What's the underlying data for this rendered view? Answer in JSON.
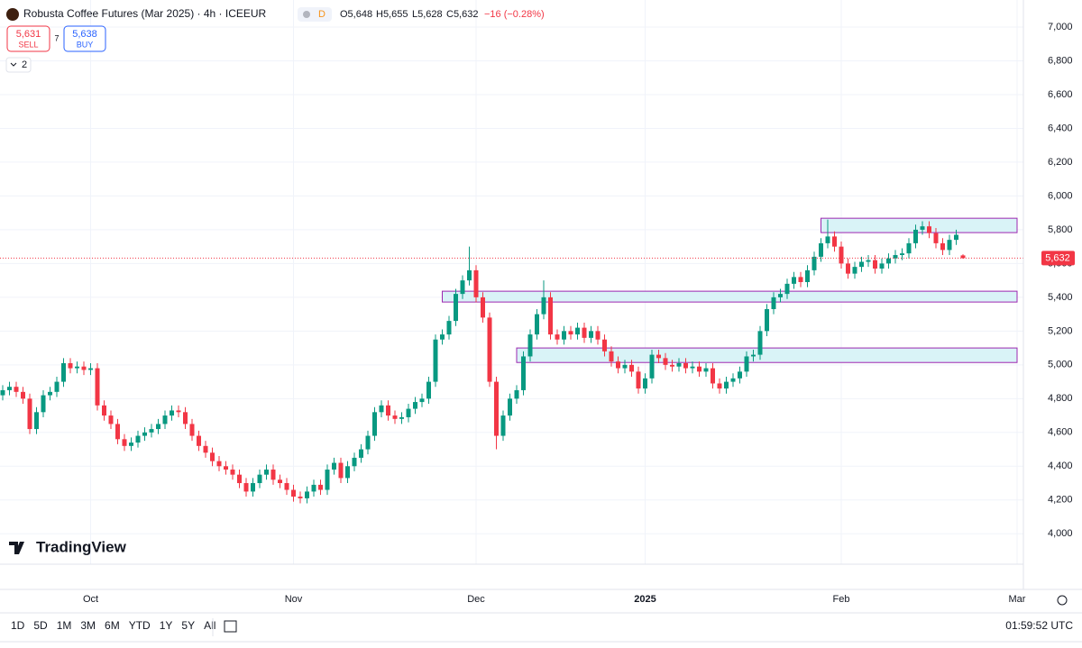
{
  "header": {
    "title": "Robusta Coffee Futures (Mar 2025) · 4h · ICEEUR",
    "badge": "D",
    "open": "O5,648",
    "high": "H5,655",
    "low": "L5,628",
    "close": "C5,632",
    "change": "−16 (−0.28%)"
  },
  "trade": {
    "sell_price": "5,631",
    "sell": "SELL",
    "spread": "7",
    "buy_price": "5,638",
    "buy": "BUY"
  },
  "indicators": "2",
  "logo": "TradingView",
  "ranges": [
    "1D",
    "5D",
    "1M",
    "3M",
    "6M",
    "YTD",
    "1Y",
    "5Y",
    "All"
  ],
  "clock": "01:59:52 UTC",
  "chart_data": {
    "type": "candlestick",
    "categories": [
      null,
      null,
      null,
      null,
      null,
      null,
      null,
      null,
      null,
      null,
      null,
      null,
      null,
      "Oct",
      null,
      null,
      null,
      null,
      null,
      null,
      null,
      null,
      null,
      null,
      null,
      null,
      null,
      null,
      null,
      null,
      null,
      null,
      null,
      null,
      null,
      null,
      null,
      null,
      null,
      null,
      null,
      null,
      null,
      "Nov",
      null,
      null,
      null,
      null,
      null,
      null,
      null,
      null,
      null,
      null,
      null,
      null,
      null,
      null,
      null,
      null,
      null,
      null,
      null,
      null,
      null,
      null,
      null,
      null,
      null,
      null,
      "Dec",
      null,
      null,
      null,
      null,
      null,
      null,
      null,
      null,
      null,
      null,
      null,
      null,
      null,
      null,
      null,
      null,
      null,
      null,
      null,
      null,
      null,
      null,
      null,
      null,
      "2025",
      null,
      null,
      null,
      null,
      null,
      null,
      null,
      null,
      null,
      null,
      null,
      null,
      null,
      null,
      null,
      null,
      null,
      null,
      null,
      null,
      null,
      null,
      null,
      null,
      null,
      null,
      null,
      null,
      "Feb",
      null,
      null,
      null,
      null,
      null,
      null,
      null,
      null,
      null,
      null,
      null,
      null,
      null,
      null,
      null,
      null,
      null,
      null,
      null,
      null,
      null,
      null,
      null,
      null,
      null,
      "Mar",
      null
    ],
    "open": [
      4820,
      4850,
      4870,
      4840,
      4800,
      4620,
      4720,
      4820,
      4840,
      4900,
      5010,
      4980,
      4990,
      4970,
      4980,
      4760,
      4700,
      4650,
      4560,
      4520,
      4540,
      4580,
      4600,
      4620,
      4650,
      4700,
      4730,
      4720,
      4650,
      4580,
      4520,
      4480,
      4430,
      4400,
      4380,
      4350,
      4300,
      4250,
      4300,
      4350,
      4380,
      4320,
      4300,
      4260,
      4220,
      4210,
      4250,
      4290,
      4260,
      4380,
      4420,
      4330,
      4400,
      4450,
      4500,
      4580,
      4720,
      4760,
      4700,
      4680,
      4690,
      4740,
      4780,
      4800,
      4900,
      5150,
      5180,
      5260,
      5420,
      5500,
      5560,
      5400,
      5280,
      4900,
      4580,
      4700,
      4800,
      4850,
      5050,
      5180,
      5300,
      5400,
      5180,
      5150,
      5200,
      5180,
      5220,
      5160,
      5200,
      5150,
      5080,
      5020,
      4980,
      5000,
      4960,
      4860,
      4920,
      5060,
      5040,
      5000,
      4990,
      5010,
      4980,
      4990,
      4960,
      4980,
      4890,
      4860,
      4900,
      4920,
      4960,
      5050,
      5060,
      5200,
      5330,
      5400,
      5420,
      5480,
      5520,
      5490,
      5560,
      5640,
      5720,
      5760,
      5700,
      5600,
      5540,
      5580,
      5610,
      5620,
      5570,
      5600,
      5630,
      5650,
      5660,
      5720,
      5800,
      5820,
      5780,
      5720,
      5680,
      5740,
      5648,
      null,
      null,
      null,
      null,
      null,
      null,
      null,
      null,
      null
    ],
    "high": [
      4880,
      4900,
      4900,
      4870,
      4830,
      4750,
      4850,
      4870,
      4930,
      5040,
      5040,
      5020,
      5020,
      5010,
      5010,
      4790,
      4730,
      4680,
      4590,
      4570,
      4610,
      4630,
      4650,
      4680,
      4730,
      4760,
      4760,
      4750,
      4680,
      4610,
      4550,
      4510,
      4460,
      4430,
      4410,
      4380,
      4330,
      4330,
      4380,
      4410,
      4410,
      4350,
      4330,
      4290,
      4250,
      4280,
      4320,
      4320,
      4410,
      4450,
      4450,
      4430,
      4480,
      4530,
      4610,
      4750,
      4790,
      4790,
      4730,
      4720,
      4770,
      4810,
      4830,
      4930,
      5180,
      5210,
      5290,
      5450,
      5530,
      5700,
      5590,
      5430,
      5310,
      4930,
      4730,
      4830,
      4880,
      5080,
      5210,
      5330,
      5500,
      5430,
      5210,
      5230,
      5230,
      5250,
      5250,
      5230,
      5230,
      5180,
      5110,
      5050,
      5030,
      5030,
      4990,
      4950,
      5090,
      5090,
      5070,
      5030,
      5040,
      5040,
      5020,
      5020,
      5010,
      5010,
      4920,
      4930,
      4950,
      4990,
      5080,
      5090,
      5230,
      5360,
      5430,
      5450,
      5510,
      5550,
      5550,
      5590,
      5670,
      5750,
      5860,
      5790,
      5730,
      5630,
      5610,
      5640,
      5650,
      5650,
      5630,
      5660,
      5680,
      5690,
      5750,
      5830,
      5850,
      5850,
      5810,
      5750,
      5770,
      5800,
      5655,
      null,
      null,
      null,
      null,
      null,
      null,
      null,
      null,
      null
    ],
    "low": [
      4790,
      4820,
      4810,
      4770,
      4590,
      4590,
      4690,
      4790,
      4810,
      4870,
      4950,
      4950,
      4940,
      4940,
      4730,
      4670,
      4620,
      4530,
      4490,
      4490,
      4510,
      4550,
      4570,
      4590,
      4620,
      4670,
      4690,
      4620,
      4550,
      4490,
      4450,
      4400,
      4370,
      4350,
      4320,
      4270,
      4220,
      4220,
      4270,
      4320,
      4290,
      4270,
      4230,
      4190,
      4180,
      4180,
      4220,
      4230,
      4230,
      4350,
      4300,
      4300,
      4370,
      4420,
      4470,
      4550,
      4690,
      4670,
      4650,
      4650,
      4660,
      4710,
      4750,
      4770,
      4870,
      5120,
      5150,
      5230,
      5390,
      5470,
      5370,
      5250,
      4870,
      4500,
      4550,
      4670,
      4770,
      4820,
      5020,
      5150,
      5270,
      5150,
      5120,
      5120,
      5150,
      5150,
      5130,
      5130,
      5120,
      5050,
      4990,
      4950,
      4950,
      4930,
      4830,
      4830,
      4890,
      5010,
      4970,
      4960,
      4960,
      4950,
      4950,
      4930,
      4930,
      4860,
      4830,
      4830,
      4870,
      4890,
      4930,
      5020,
      5030,
      5170,
      5300,
      5370,
      5390,
      5450,
      5460,
      5460,
      5530,
      5610,
      5690,
      5670,
      5570,
      5510,
      5510,
      5550,
      5580,
      5540,
      5540,
      5570,
      5600,
      5620,
      5630,
      5690,
      5770,
      5750,
      5690,
      5650,
      5650,
      5710,
      5628,
      null,
      null,
      null,
      null,
      null,
      null,
      null,
      null,
      null
    ],
    "close": [
      4850,
      4870,
      4840,
      4800,
      4620,
      4720,
      4820,
      4840,
      4900,
      5010,
      4980,
      4990,
      4970,
      4980,
      4760,
      4700,
      4650,
      4560,
      4520,
      4540,
      4580,
      4600,
      4620,
      4650,
      4700,
      4730,
      4720,
      4650,
      4580,
      4520,
      4480,
      4430,
      4400,
      4380,
      4350,
      4300,
      4250,
      4300,
      4350,
      4380,
      4320,
      4300,
      4260,
      4220,
      4210,
      4250,
      4290,
      4260,
      4380,
      4420,
      4330,
      4400,
      4450,
      4500,
      4580,
      4720,
      4760,
      4700,
      4680,
      4690,
      4740,
      4780,
      4800,
      4900,
      5150,
      5180,
      5260,
      5420,
      5500,
      5560,
      5400,
      5280,
      4900,
      4580,
      4700,
      4800,
      4850,
      5050,
      5180,
      5300,
      5400,
      5180,
      5150,
      5200,
      5180,
      5220,
      5160,
      5200,
      5150,
      5080,
      5020,
      4980,
      5000,
      4960,
      4860,
      4920,
      5060,
      5040,
      5000,
      4990,
      5010,
      4980,
      4990,
      4960,
      4980,
      4890,
      4860,
      4900,
      4920,
      4960,
      5050,
      5060,
      5200,
      5330,
      5400,
      5420,
      5480,
      5520,
      5490,
      5560,
      5640,
      5720,
      5760,
      5700,
      5600,
      5540,
      5580,
      5610,
      5620,
      5570,
      5600,
      5630,
      5650,
      5660,
      5720,
      5800,
      5820,
      5780,
      5720,
      5680,
      5740,
      5770,
      5632,
      null,
      null,
      null,
      null,
      null,
      null,
      null,
      null,
      null
    ],
    "up_color": "#089981",
    "down_color": "#f23645",
    "ylim": [
      3820,
      7160
    ],
    "yticks": [
      {
        "value": 4000,
        "label": "4,000"
      },
      {
        "value": 4200,
        "label": "4,200"
      },
      {
        "value": 4400,
        "label": "4,400"
      },
      {
        "value": 4600,
        "label": "4,600"
      },
      {
        "value": 4800,
        "label": "4,800"
      },
      {
        "value": 5000,
        "label": "5,000"
      },
      {
        "value": 5200,
        "label": "5,200"
      },
      {
        "value": 5400,
        "label": "5,400"
      },
      {
        "value": 5600,
        "label": "5,600"
      },
      {
        "value": 5800,
        "label": "5,800"
      },
      {
        "value": 6000,
        "label": "6,000"
      },
      {
        "value": 6200,
        "label": "6,200"
      },
      {
        "value": 6400,
        "label": "6,400"
      },
      {
        "value": 6600,
        "label": "6,600"
      },
      {
        "value": 6800,
        "label": "6,800"
      },
      {
        "value": 7000,
        "label": "7,000"
      }
    ],
    "grid": true,
    "last_price": {
      "value": 5632,
      "label": "5,632"
    },
    "zones": [
      {
        "top": 5868,
        "bottom": 5783,
        "start": 121,
        "end": 150
      },
      {
        "top": 5436,
        "bottom": 5372,
        "start": 65,
        "end": 150
      },
      {
        "top": 5100,
        "bottom": 5014,
        "start": 76,
        "end": 150
      }
    ],
    "zone_color": "#9c27b0"
  }
}
